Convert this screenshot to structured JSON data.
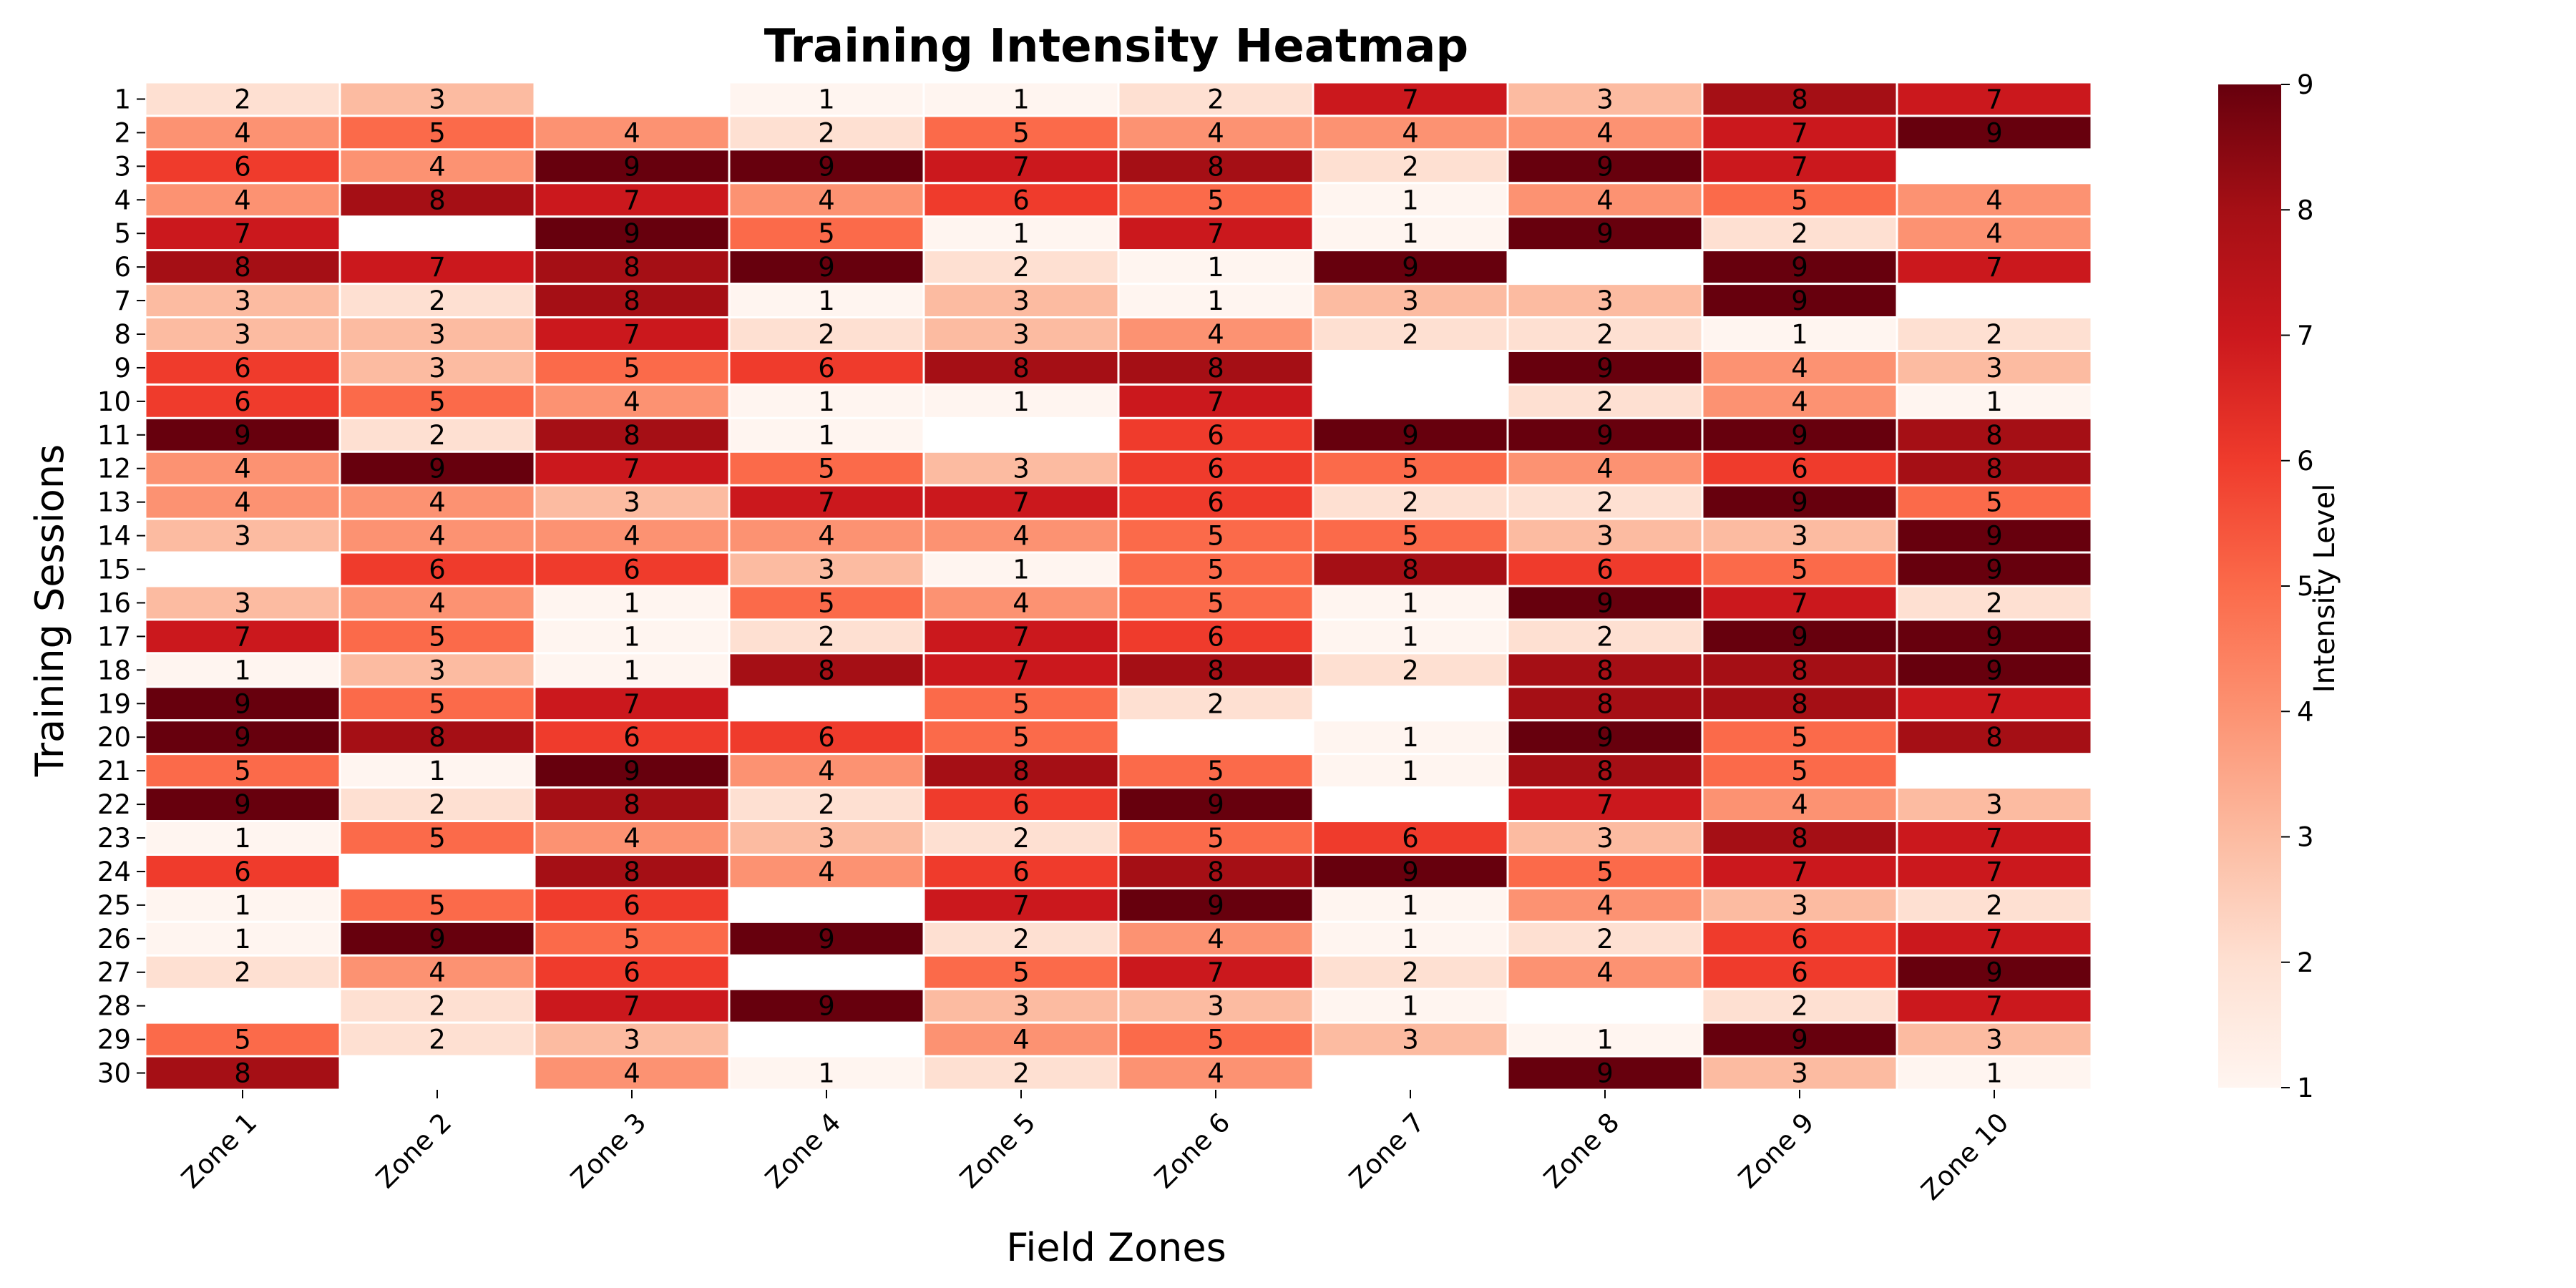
{
  "chart_data": {
    "type": "heatmap",
    "title": "Training Intensity Heatmap",
    "xlabel": "Field Zones",
    "ylabel": "Training Sessions",
    "colorbar_label": "Intensity Level",
    "color_range": [
      1,
      9
    ],
    "colorbar_ticks": [
      1,
      2,
      3,
      4,
      5,
      6,
      7,
      8,
      9
    ],
    "colormap": "Reds",
    "x_categories": [
      "Zone 1",
      "Zone 2",
      "Zone 3",
      "Zone 4",
      "Zone 5",
      "Zone 6",
      "Zone 7",
      "Zone 8",
      "Zone 9",
      "Zone 10"
    ],
    "y_categories": [
      "1",
      "2",
      "3",
      "4",
      "5",
      "6",
      "7",
      "8",
      "9",
      "10",
      "11",
      "12",
      "13",
      "14",
      "15",
      "16",
      "17",
      "18",
      "19",
      "20",
      "21",
      "22",
      "23",
      "24",
      "25",
      "26",
      "27",
      "28",
      "29",
      "30"
    ],
    "values": [
      [
        2,
        3,
        null,
        1,
        1,
        2,
        7,
        3,
        8,
        7
      ],
      [
        4,
        5,
        4,
        2,
        5,
        4,
        4,
        4,
        7,
        9
      ],
      [
        6,
        4,
        9,
        9,
        7,
        8,
        2,
        9,
        7,
        null
      ],
      [
        4,
        8,
        7,
        4,
        6,
        5,
        1,
        4,
        5,
        4
      ],
      [
        7,
        null,
        9,
        5,
        1,
        7,
        1,
        9,
        2,
        4
      ],
      [
        8,
        7,
        8,
        9,
        2,
        1,
        9,
        null,
        9,
        7
      ],
      [
        3,
        2,
        8,
        1,
        3,
        1,
        3,
        3,
        9,
        null
      ],
      [
        3,
        3,
        7,
        2,
        3,
        4,
        2,
        2,
        1,
        2
      ],
      [
        6,
        3,
        5,
        6,
        8,
        8,
        null,
        9,
        4,
        3
      ],
      [
        6,
        5,
        4,
        1,
        1,
        7,
        null,
        2,
        4,
        1
      ],
      [
        9,
        2,
        8,
        1,
        null,
        6,
        9,
        9,
        9,
        8
      ],
      [
        4,
        9,
        7,
        5,
        3,
        6,
        5,
        4,
        6,
        8
      ],
      [
        4,
        4,
        3,
        7,
        7,
        6,
        2,
        2,
        9,
        5
      ],
      [
        3,
        4,
        4,
        4,
        4,
        5,
        5,
        3,
        3,
        9
      ],
      [
        null,
        6,
        6,
        3,
        1,
        5,
        8,
        6,
        5,
        9
      ],
      [
        3,
        4,
        1,
        5,
        4,
        5,
        1,
        9,
        7,
        2
      ],
      [
        7,
        5,
        1,
        2,
        7,
        6,
        1,
        2,
        9,
        9
      ],
      [
        1,
        3,
        1,
        8,
        7,
        8,
        2,
        8,
        8,
        9
      ],
      [
        9,
        5,
        7,
        null,
        5,
        2,
        null,
        8,
        8,
        7
      ],
      [
        9,
        8,
        6,
        6,
        5,
        null,
        1,
        9,
        5,
        8
      ],
      [
        5,
        1,
        9,
        4,
        8,
        5,
        1,
        8,
        5,
        null
      ],
      [
        9,
        2,
        8,
        2,
        6,
        9,
        null,
        7,
        4,
        3
      ],
      [
        1,
        5,
        4,
        3,
        2,
        5,
        6,
        3,
        8,
        7
      ],
      [
        6,
        null,
        8,
        4,
        6,
        8,
        9,
        5,
        7,
        7
      ],
      [
        1,
        5,
        6,
        null,
        7,
        9,
        1,
        4,
        3,
        2
      ],
      [
        1,
        9,
        5,
        9,
        2,
        4,
        1,
        2,
        6,
        7
      ],
      [
        2,
        4,
        6,
        null,
        5,
        7,
        2,
        4,
        6,
        9
      ],
      [
        null,
        2,
        7,
        9,
        3,
        3,
        1,
        null,
        2,
        7
      ],
      [
        5,
        2,
        3,
        null,
        4,
        5,
        3,
        1,
        9,
        3
      ],
      [
        8,
        null,
        4,
        1,
        2,
        4,
        null,
        9,
        3,
        1
      ]
    ]
  }
}
